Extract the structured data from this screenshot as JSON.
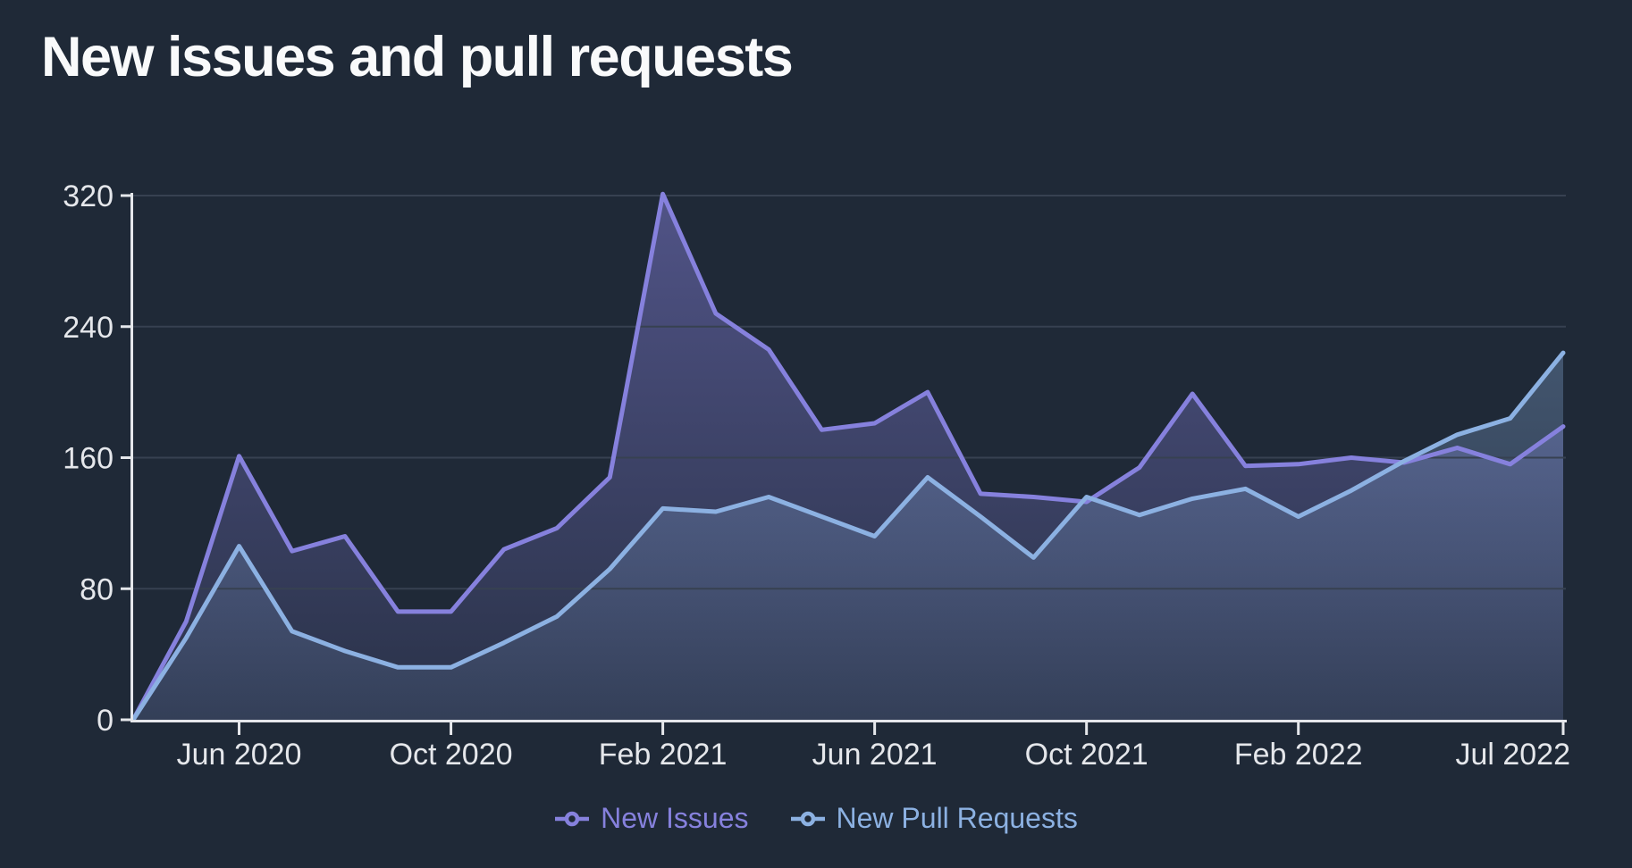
{
  "title": "New issues and pull requests",
  "colors": {
    "background": "#1f2937",
    "title": "#f9fafb",
    "axis": "#e5e7eb",
    "grid": "#374151",
    "issues": "#8681dd",
    "pulls": "#8cb1e2"
  },
  "legend": [
    {
      "label": "New Issues",
      "series": "issues"
    },
    {
      "label": "New Pull Requests",
      "series": "pulls"
    }
  ],
  "chart_data": {
    "type": "area",
    "x": [
      "Apr 2020",
      "May 2020",
      "Jun 2020",
      "Jul 2020",
      "Aug 2020",
      "Sep 2020",
      "Oct 2020",
      "Nov 2020",
      "Dec 2020",
      "Jan 2021",
      "Feb 2021",
      "Mar 2021",
      "Apr 2021",
      "May 2021",
      "Jun 2021",
      "Jul 2021",
      "Aug 2021",
      "Sep 2021",
      "Oct 2021",
      "Nov 2021",
      "Dec 2021",
      "Jan 2022",
      "Feb 2022",
      "Mar 2022",
      "Apr 2022",
      "May 2022",
      "Jun 2022",
      "Jul 2022"
    ],
    "series": [
      {
        "name": "New Issues",
        "color": "#8681dd",
        "values": [
          0,
          60,
          161,
          103,
          112,
          66,
          66,
          104,
          117,
          148,
          321,
          248,
          226,
          177,
          181,
          200,
          138,
          136,
          133,
          154,
          199,
          155,
          156,
          160,
          157,
          166,
          156,
          179
        ]
      },
      {
        "name": "New Pull Requests",
        "color": "#8cb1e2",
        "values": [
          0,
          50,
          106,
          54,
          42,
          32,
          32,
          47,
          63,
          92,
          129,
          127,
          136,
          124,
          112,
          148,
          124,
          99,
          136,
          125,
          135,
          141,
          124,
          140,
          158,
          174,
          184,
          224
        ]
      }
    ],
    "title": "New issues and pull requests",
    "xlabel": "",
    "ylabel": "",
    "ylim": [
      0,
      320
    ],
    "yticks": [
      0,
      80,
      160,
      240,
      320
    ],
    "xtick_labels": [
      "Jun 2020",
      "Oct 2020",
      "Feb 2021",
      "Jun 2021",
      "Oct 2021",
      "Feb 2022",
      "Jul 2022"
    ],
    "xtick_indices": [
      2,
      6,
      10,
      14,
      18,
      22,
      27
    ],
    "grid": "horizontal",
    "legend_position": "bottom"
  }
}
